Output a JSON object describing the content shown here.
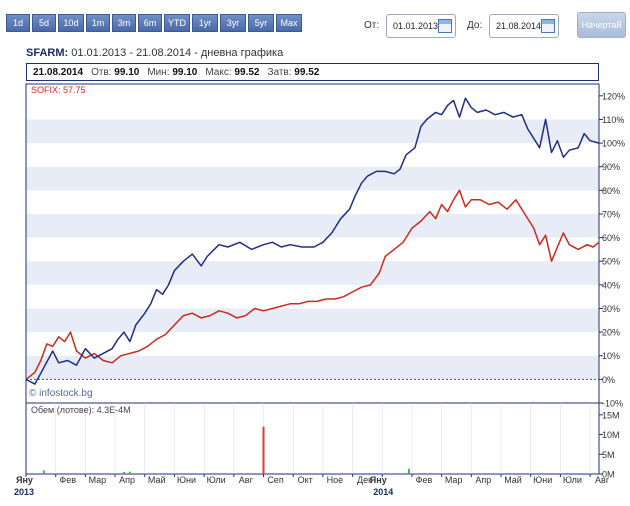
{
  "toolbar": {
    "ranges": [
      "1d",
      "5d",
      "10d",
      "1m",
      "3m",
      "6m",
      "YTD",
      "1yr",
      "3yr",
      "5yr",
      "Max"
    ],
    "from_label": "От:",
    "from_value": "01.01.2013",
    "to_label": "До:",
    "to_value": "21.08.2014",
    "draw_label": "Начертай"
  },
  "header": {
    "ticker": "SFARM:",
    "subtitle": "01.01.2013 - 21.08.2014 - дневна графика"
  },
  "stats": {
    "date": "21.08.2014",
    "open_label": "Отв:",
    "open": "99.10",
    "min_label": "Мин:",
    "min": "99.10",
    "max_label": "Макс:",
    "max": "99.52",
    "close_label": "Затв:",
    "close": "99.52"
  },
  "chart": {
    "sofix_label": "SOFIX: 57.75",
    "watermark": "© infostock.bg",
    "volume_label": "Обем (лотове): 4.3E-4M",
    "colors": {
      "sfarm": "#1f2f87",
      "sofix": "#cc2a1e",
      "band": "#e8ecf7",
      "frame": "#1d3178"
    }
  },
  "chart_data": {
    "type": "line",
    "title": "SFARM: 01.01.2013 - 21.08.2014 - дневна графика",
    "y_unit": "%",
    "ylim": [
      -10,
      125
    ],
    "yticks": [
      120,
      110,
      100,
      90,
      80,
      70,
      60,
      50,
      40,
      30,
      20,
      10,
      0,
      -10
    ],
    "ytick_labels": [
      "120%",
      "110%",
      "100%",
      "90%",
      "80%",
      "70%",
      "60%",
      "50%",
      "40%",
      "30%",
      "20%",
      "10%",
      "0%",
      "-10%"
    ],
    "x_month_labels": [
      "Яну",
      "Фев",
      "Мар",
      "Апр",
      "Май",
      "Юни",
      "Юли",
      "Авг",
      "Сеп",
      "Окт",
      "Ное",
      "Дек",
      "Яну",
      "Фев",
      "Мар",
      "Апр",
      "Май",
      "Юни",
      "Юли",
      "Авг"
    ],
    "x_year_labels": [
      {
        "month": 0,
        "text": "2013"
      },
      {
        "month": 12,
        "text": "2014"
      }
    ],
    "series": [
      {
        "name": "SFARM",
        "color": "#1f2f87",
        "points": [
          [
            0,
            0
          ],
          [
            0.3,
            -2
          ],
          [
            0.6,
            5
          ],
          [
            0.9,
            12
          ],
          [
            1.1,
            7
          ],
          [
            1.4,
            8
          ],
          [
            1.7,
            6
          ],
          [
            2.0,
            13
          ],
          [
            2.3,
            9
          ],
          [
            2.6,
            11
          ],
          [
            2.9,
            13
          ],
          [
            3.1,
            17
          ],
          [
            3.3,
            20
          ],
          [
            3.5,
            16
          ],
          [
            3.7,
            23
          ],
          [
            4.0,
            28
          ],
          [
            4.2,
            32
          ],
          [
            4.4,
            38
          ],
          [
            4.6,
            36
          ],
          [
            4.8,
            40
          ],
          [
            5.0,
            46
          ],
          [
            5.3,
            50
          ],
          [
            5.6,
            53
          ],
          [
            5.9,
            48
          ],
          [
            6.1,
            52
          ],
          [
            6.5,
            57
          ],
          [
            6.8,
            56
          ],
          [
            7.2,
            58
          ],
          [
            7.6,
            55
          ],
          [
            8.0,
            57
          ],
          [
            8.3,
            58
          ],
          [
            8.6,
            56
          ],
          [
            8.9,
            57
          ],
          [
            9.3,
            56
          ],
          [
            9.7,
            56
          ],
          [
            10.0,
            58
          ],
          [
            10.3,
            62
          ],
          [
            10.6,
            68
          ],
          [
            10.9,
            72
          ],
          [
            11.1,
            78
          ],
          [
            11.3,
            83
          ],
          [
            11.5,
            86
          ],
          [
            11.8,
            88
          ],
          [
            12.1,
            88
          ],
          [
            12.4,
            87
          ],
          [
            12.6,
            89
          ],
          [
            12.8,
            95
          ],
          [
            13.1,
            98
          ],
          [
            13.3,
            107
          ],
          [
            13.5,
            110
          ],
          [
            13.8,
            113
          ],
          [
            14.0,
            112
          ],
          [
            14.2,
            116
          ],
          [
            14.4,
            118
          ],
          [
            14.6,
            111
          ],
          [
            14.8,
            119
          ],
          [
            15.0,
            115
          ],
          [
            15.2,
            113
          ],
          [
            15.5,
            114
          ],
          [
            15.8,
            112
          ],
          [
            16.1,
            113
          ],
          [
            16.4,
            111
          ],
          [
            16.7,
            112
          ],
          [
            16.9,
            106
          ],
          [
            17.1,
            102
          ],
          [
            17.3,
            98
          ],
          [
            17.5,
            110
          ],
          [
            17.7,
            96
          ],
          [
            17.9,
            101
          ],
          [
            18.1,
            94
          ],
          [
            18.3,
            97
          ],
          [
            18.6,
            98
          ],
          [
            18.8,
            104
          ],
          [
            19.0,
            101
          ],
          [
            19.3,
            100
          ]
        ]
      },
      {
        "name": "SOFIX",
        "color": "#cc2a1e",
        "points": [
          [
            0,
            0
          ],
          [
            0.3,
            3
          ],
          [
            0.5,
            8
          ],
          [
            0.7,
            15
          ],
          [
            0.9,
            14
          ],
          [
            1.1,
            18
          ],
          [
            1.3,
            16
          ],
          [
            1.5,
            20
          ],
          [
            1.7,
            12
          ],
          [
            2.0,
            9
          ],
          [
            2.3,
            11
          ],
          [
            2.6,
            8
          ],
          [
            2.9,
            7
          ],
          [
            3.2,
            10
          ],
          [
            3.5,
            11
          ],
          [
            3.8,
            12
          ],
          [
            4.1,
            14
          ],
          [
            4.4,
            17
          ],
          [
            4.7,
            19
          ],
          [
            5.0,
            23
          ],
          [
            5.3,
            27
          ],
          [
            5.6,
            28
          ],
          [
            5.9,
            26
          ],
          [
            6.2,
            27
          ],
          [
            6.5,
            29
          ],
          [
            6.8,
            28
          ],
          [
            7.1,
            26
          ],
          [
            7.4,
            27
          ],
          [
            7.7,
            30
          ],
          [
            8.0,
            29
          ],
          [
            8.3,
            30
          ],
          [
            8.6,
            31
          ],
          [
            8.9,
            32
          ],
          [
            9.2,
            32
          ],
          [
            9.5,
            33
          ],
          [
            9.8,
            33
          ],
          [
            10.1,
            34
          ],
          [
            10.4,
            34
          ],
          [
            10.7,
            35
          ],
          [
            11.0,
            37
          ],
          [
            11.3,
            39
          ],
          [
            11.6,
            40
          ],
          [
            11.9,
            45
          ],
          [
            12.1,
            52
          ],
          [
            12.4,
            55
          ],
          [
            12.7,
            58
          ],
          [
            13.0,
            64
          ],
          [
            13.3,
            67
          ],
          [
            13.6,
            71
          ],
          [
            13.8,
            68
          ],
          [
            14.0,
            74
          ],
          [
            14.2,
            71
          ],
          [
            14.4,
            76
          ],
          [
            14.6,
            80
          ],
          [
            14.8,
            73
          ],
          [
            15.0,
            76
          ],
          [
            15.3,
            76
          ],
          [
            15.6,
            74
          ],
          [
            15.9,
            75
          ],
          [
            16.2,
            72
          ],
          [
            16.5,
            76
          ],
          [
            16.8,
            70
          ],
          [
            17.1,
            64
          ],
          [
            17.3,
            57
          ],
          [
            17.5,
            61
          ],
          [
            17.7,
            50
          ],
          [
            17.9,
            56
          ],
          [
            18.1,
            62
          ],
          [
            18.3,
            57
          ],
          [
            18.6,
            55
          ],
          [
            18.9,
            57
          ],
          [
            19.1,
            56
          ],
          [
            19.3,
            58
          ]
        ]
      }
    ],
    "volume": {
      "name": "Обем (лотове)",
      "yticks": [
        15,
        10,
        5,
        0
      ],
      "ytick_labels": [
        "15M",
        "10M",
        "5M",
        "0M"
      ],
      "ylim": [
        0,
        18
      ],
      "bars": [
        {
          "x": 0.6,
          "value": 0.9,
          "color": "#4caf50"
        },
        {
          "x": 3.3,
          "value": 0.5,
          "color": "#4caf50"
        },
        {
          "x": 3.5,
          "value": 0.6,
          "color": "#4caf50"
        },
        {
          "x": 8.0,
          "value": 12.0,
          "color": "#e53935"
        },
        {
          "x": 12.9,
          "value": 1.3,
          "color": "#4caf50"
        }
      ]
    }
  }
}
